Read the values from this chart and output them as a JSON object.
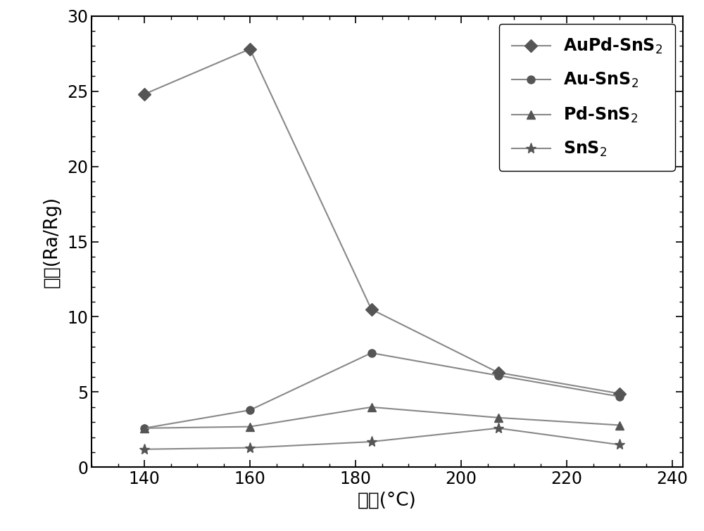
{
  "x": [
    140,
    160,
    183,
    207,
    230
  ],
  "AuPd_SnS2": [
    24.8,
    27.8,
    10.5,
    6.3,
    4.9
  ],
  "Au_SnS2": [
    2.6,
    3.8,
    7.6,
    6.1,
    4.7
  ],
  "Pd_SnS2": [
    2.6,
    2.7,
    4.0,
    3.3,
    2.8
  ],
  "SnS2": [
    1.2,
    1.3,
    1.7,
    2.6,
    1.5
  ],
  "xlabel": "温度(°C)",
  "ylabel": "响应(Ra/Rg)",
  "xlim": [
    130,
    242
  ],
  "ylim": [
    0,
    30
  ],
  "xticks": [
    140,
    160,
    180,
    200,
    220,
    240
  ],
  "yticks": [
    0,
    5,
    10,
    15,
    20,
    25,
    30
  ],
  "legend_labels": [
    "AuPd-SnS$_2$",
    "Au-SnS$_2$",
    "Pd-SnS$_2$",
    "SnS$_2$"
  ],
  "line_color": "#888888",
  "marker_color": "#555555",
  "background": "#ffffff"
}
